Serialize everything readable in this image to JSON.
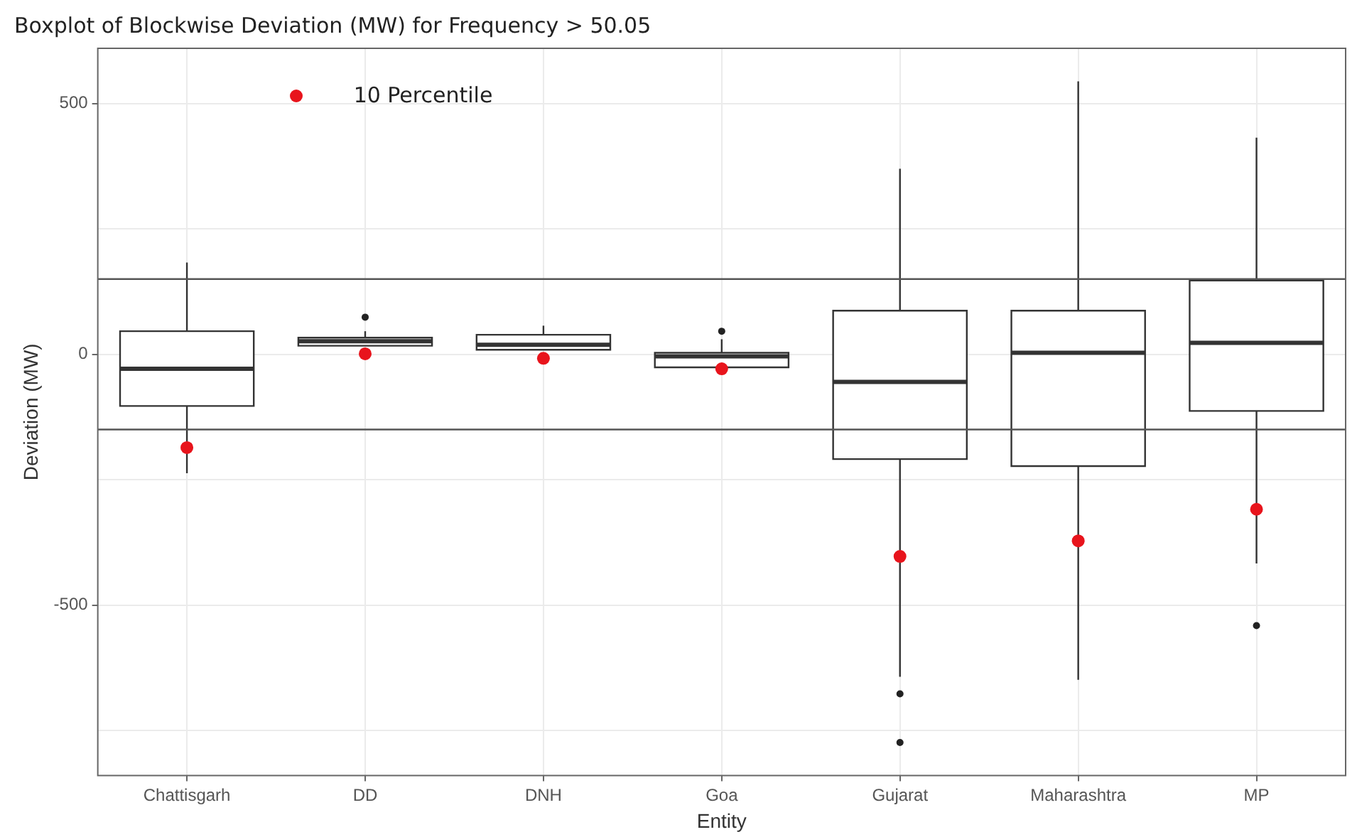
{
  "chart_data": {
    "type": "box",
    "title": "Boxplot of Blockwise Deviation (MW) for Frequency > 50.05",
    "xlabel": "Entity",
    "ylabel": "Deviation (MW)",
    "categories": [
      "Chattisgarh",
      "DD",
      "DNH",
      "Goa",
      "Gujarat",
      "Maharashtra",
      "MP"
    ],
    "boxes": [
      {
        "low": -237,
        "q1": -103,
        "median": -29,
        "q3": 46,
        "high": 183
      },
      {
        "low": 17,
        "q1": 17,
        "median": 26,
        "q3": 33,
        "high": 46,
        "outliers": [
          74
        ]
      },
      {
        "low": 9,
        "q1": 9,
        "median": 19,
        "q3": 39,
        "high": 57
      },
      {
        "low": -26,
        "q1": -26,
        "median": -4,
        "q3": 3,
        "high": 30,
        "outliers": [
          46
        ]
      },
      {
        "low": -643,
        "q1": -209,
        "median": -55,
        "q3": 87,
        "high": 370,
        "outliers": [
          -677,
          -774
        ]
      },
      {
        "low": -649,
        "q1": -223,
        "median": 3,
        "q3": 87,
        "high": 544
      },
      {
        "low": -417,
        "q1": -113,
        "median": 23,
        "q3": 147,
        "high": 432,
        "outliers": [
          -541
        ]
      }
    ],
    "series": [
      {
        "type": "scatter",
        "name": "10 Percentile",
        "color": "#e8141c",
        "x": [
          "Chattisgarh",
          "DD",
          "DNH",
          "Goa",
          "Gujarat",
          "Maharashtra",
          "MP"
        ],
        "values": [
          -186,
          1,
          -8,
          -29,
          -403,
          -372,
          -309
        ]
      }
    ],
    "ref_lines": [
      {
        "axis": "y",
        "value": 150,
        "color": "#555555"
      },
      {
        "axis": "y",
        "value": -150,
        "color": "#555555"
      }
    ],
    "ylim": [
      -840,
      610
    ],
    "yticks": [
      {
        "value": -750,
        "label": null
      },
      -500,
      {
        "value": -250,
        "label": null
      },
      0,
      {
        "value": 250,
        "label": null
      },
      500
    ],
    "grid": true,
    "legend": "top left",
    "marker": "circle"
  }
}
